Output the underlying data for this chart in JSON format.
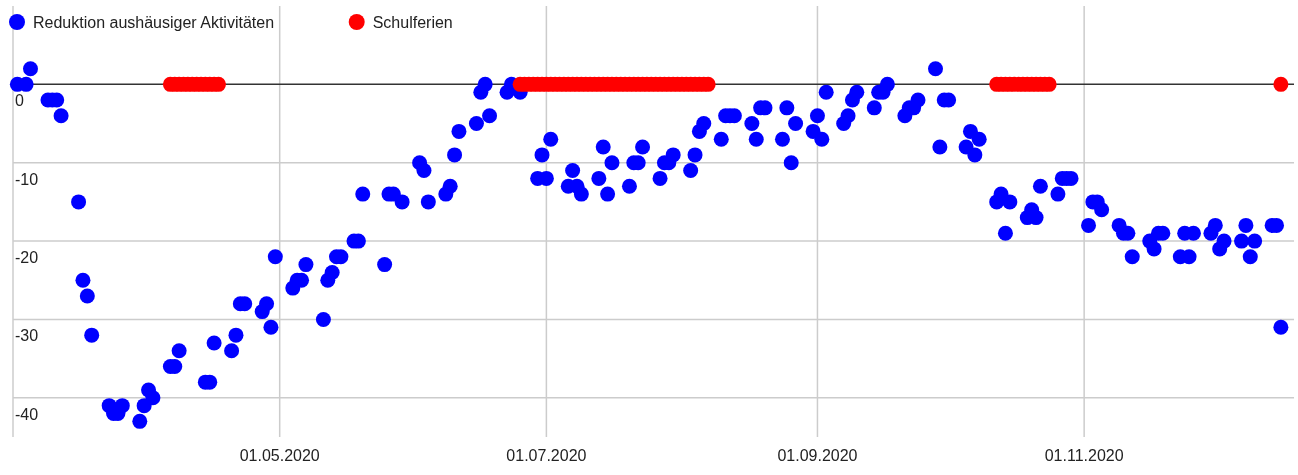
{
  "chart_data": {
    "type": "scatter",
    "xlim": [
      "2020-03-01",
      "2020-12-19"
    ],
    "ylim": [
      -45,
      10
    ],
    "xticks": [
      {
        "value": "2020-05-01",
        "label": "01.05.2020"
      },
      {
        "value": "2020-07-01",
        "label": "01.07.2020"
      },
      {
        "value": "2020-09-01",
        "label": "01.09.2020"
      },
      {
        "value": "2020-11-01",
        "label": "01.11.2020"
      }
    ],
    "yticks": [
      0,
      -10,
      -20,
      -30,
      -40
    ],
    "grid": true,
    "legend": "top left",
    "marker": "circle",
    "series": [
      {
        "name": "Reduktion aushäusiger Aktivitäten",
        "color": "#0000ff",
        "x": [
          "2020-03-02",
          "2020-03-04",
          "2020-03-05",
          "2020-03-09",
          "2020-03-10",
          "2020-03-11",
          "2020-03-12",
          "2020-03-16",
          "2020-03-17",
          "2020-03-18",
          "2020-03-19",
          "2020-03-23",
          "2020-03-24",
          "2020-03-25",
          "2020-03-26",
          "2020-03-30",
          "2020-03-31",
          "2020-04-01",
          "2020-04-02",
          "2020-04-06",
          "2020-04-07",
          "2020-04-08",
          "2020-04-14",
          "2020-04-15",
          "2020-04-16",
          "2020-04-20",
          "2020-04-21",
          "2020-04-22",
          "2020-04-23",
          "2020-04-27",
          "2020-04-28",
          "2020-04-29",
          "2020-04-30",
          "2020-05-04",
          "2020-05-05",
          "2020-05-06",
          "2020-05-07",
          "2020-05-11",
          "2020-05-12",
          "2020-05-13",
          "2020-05-14",
          "2020-05-15",
          "2020-05-18",
          "2020-05-19",
          "2020-05-20",
          "2020-05-25",
          "2020-05-26",
          "2020-05-27",
          "2020-05-29",
          "2020-06-02",
          "2020-06-03",
          "2020-06-04",
          "2020-06-08",
          "2020-06-09",
          "2020-06-10",
          "2020-06-11",
          "2020-06-15",
          "2020-06-16",
          "2020-06-17",
          "2020-06-18",
          "2020-06-22",
          "2020-06-23",
          "2020-06-25",
          "2020-06-29",
          "2020-06-30",
          "2020-07-01",
          "2020-07-02",
          "2020-07-06",
          "2020-07-07",
          "2020-07-08",
          "2020-07-09",
          "2020-07-13",
          "2020-07-14",
          "2020-07-15",
          "2020-07-16",
          "2020-07-20",
          "2020-07-21",
          "2020-07-22",
          "2020-07-23",
          "2020-07-27",
          "2020-07-28",
          "2020-07-29",
          "2020-07-30",
          "2020-08-03",
          "2020-08-04",
          "2020-08-05",
          "2020-08-06",
          "2020-08-10",
          "2020-08-11",
          "2020-08-12",
          "2020-08-13",
          "2020-08-17",
          "2020-08-18",
          "2020-08-19",
          "2020-08-20",
          "2020-08-24",
          "2020-08-25",
          "2020-08-26",
          "2020-08-27",
          "2020-08-31",
          "2020-09-01",
          "2020-09-02",
          "2020-09-03",
          "2020-09-07",
          "2020-09-08",
          "2020-09-09",
          "2020-09-10",
          "2020-09-14",
          "2020-09-15",
          "2020-09-16",
          "2020-09-17",
          "2020-09-21",
          "2020-09-22",
          "2020-09-23",
          "2020-09-24",
          "2020-09-28",
          "2020-09-29",
          "2020-09-30",
          "2020-10-01",
          "2020-10-05",
          "2020-10-06",
          "2020-10-07",
          "2020-10-08",
          "2020-10-12",
          "2020-10-13",
          "2020-10-14",
          "2020-10-15",
          "2020-10-19",
          "2020-10-20",
          "2020-10-21",
          "2020-10-22",
          "2020-10-26",
          "2020-10-27",
          "2020-10-28",
          "2020-10-29",
          "2020-11-02",
          "2020-11-03",
          "2020-11-04",
          "2020-11-05",
          "2020-11-09",
          "2020-11-10",
          "2020-11-11",
          "2020-11-12",
          "2020-11-16",
          "2020-11-17",
          "2020-11-18",
          "2020-11-19",
          "2020-11-23",
          "2020-11-24",
          "2020-11-25",
          "2020-11-26",
          "2020-11-30",
          "2020-12-01",
          "2020-12-02",
          "2020-12-03",
          "2020-12-07",
          "2020-12-08",
          "2020-12-09",
          "2020-12-10",
          "2020-12-14",
          "2020-12-15",
          "2020-12-16"
        ],
        "values": [
          0,
          0,
          2,
          -2,
          -2,
          -2,
          -4,
          -15,
          -25,
          -27,
          -32,
          -41,
          -42,
          -42,
          -41,
          -43,
          -41,
          -39,
          -40,
          -36,
          -36,
          -34,
          -38,
          -38,
          -33,
          -34,
          -32,
          -28,
          -28,
          -29,
          -28,
          -31,
          -22,
          -26,
          -25,
          -25,
          -23,
          -30,
          -25,
          -24,
          -22,
          -22,
          -20,
          -20,
          -14,
          -23,
          -14,
          -14,
          -15,
          -10,
          -11,
          -15,
          -14,
          -13,
          -9,
          -6,
          -5,
          -1,
          0,
          -4,
          -1,
          0,
          -1,
          -12,
          -9,
          -12,
          -7,
          -13,
          -11,
          -13,
          -14,
          -12,
          -8,
          -14,
          -10,
          -13,
          -10,
          -10,
          -8,
          -12,
          -10,
          -10,
          -9,
          -11,
          -9,
          -6,
          -5,
          -7,
          -4,
          -4,
          -4,
          -5,
          -7,
          -3,
          -3,
          -7,
          -3,
          -10,
          -5,
          -6,
          -4,
          -7,
          -1,
          -5,
          -4,
          -2,
          -1,
          -3,
          -1,
          -1,
          0,
          -4,
          -3,
          -3,
          -2,
          2,
          -8,
          -2,
          -2,
          -8,
          -6,
          -9,
          -7,
          -15,
          -14,
          -19,
          -15,
          -17,
          -16,
          -17,
          -13,
          -14,
          -12,
          -12,
          -12,
          -18,
          -15,
          -15,
          -16,
          -18,
          -19,
          -19,
          -22,
          -20,
          -21,
          -19,
          -19,
          -22,
          -19,
          -22,
          -19,
          -19,
          -18,
          -21,
          -20,
          -20,
          -18,
          -22,
          -20,
          -18,
          -18,
          -31
        ]
      },
      {
        "name": "Schulferien",
        "color": "#ff0000",
        "x": [
          "2020-04-06",
          "2020-04-07",
          "2020-04-08",
          "2020-04-09",
          "2020-04-10",
          "2020-04-11",
          "2020-04-12",
          "2020-04-13",
          "2020-04-14",
          "2020-04-15",
          "2020-04-16",
          "2020-04-17",
          "2020-06-25",
          "2020-06-26",
          "2020-06-27",
          "2020-06-28",
          "2020-06-29",
          "2020-06-30",
          "2020-07-01",
          "2020-07-02",
          "2020-07-03",
          "2020-07-04",
          "2020-07-05",
          "2020-07-06",
          "2020-07-07",
          "2020-07-08",
          "2020-07-09",
          "2020-07-10",
          "2020-07-11",
          "2020-07-12",
          "2020-07-13",
          "2020-07-14",
          "2020-07-15",
          "2020-07-16",
          "2020-07-17",
          "2020-07-18",
          "2020-07-19",
          "2020-07-20",
          "2020-07-21",
          "2020-07-22",
          "2020-07-23",
          "2020-07-24",
          "2020-07-25",
          "2020-07-26",
          "2020-07-27",
          "2020-07-28",
          "2020-07-29",
          "2020-07-30",
          "2020-07-31",
          "2020-08-01",
          "2020-08-02",
          "2020-08-03",
          "2020-08-04",
          "2020-08-05",
          "2020-08-06",
          "2020-08-07",
          "2020-10-12",
          "2020-10-13",
          "2020-10-14",
          "2020-10-15",
          "2020-10-16",
          "2020-10-17",
          "2020-10-18",
          "2020-10-19",
          "2020-10-20",
          "2020-10-21",
          "2020-10-22",
          "2020-10-23",
          "2020-10-24",
          "2020-12-16"
        ],
        "values": [
          0,
          0,
          0,
          0,
          0,
          0,
          0,
          0,
          0,
          0,
          0,
          0,
          0,
          0,
          0,
          0,
          0,
          0,
          0,
          0,
          0,
          0,
          0,
          0,
          0,
          0,
          0,
          0,
          0,
          0,
          0,
          0,
          0,
          0,
          0,
          0,
          0,
          0,
          0,
          0,
          0,
          0,
          0,
          0,
          0,
          0,
          0,
          0,
          0,
          0,
          0,
          0,
          0,
          0,
          0,
          0,
          0,
          0,
          0,
          0,
          0,
          0,
          0,
          0,
          0,
          0,
          0,
          0,
          0,
          0
        ]
      }
    ]
  }
}
